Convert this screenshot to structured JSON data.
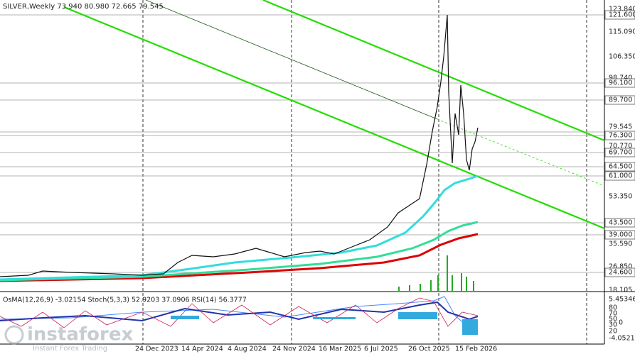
{
  "header": {
    "text": "SILVER,Weekly  73.940 80.980 72.665 79.545"
  },
  "price_axis": {
    "labels": [
      "123.840",
      "121.600",
      "115.090",
      "106.350",
      "98.740",
      "96.100",
      "89.700",
      "79.545",
      "76.300",
      "70.770",
      "69.700",
      "64.500",
      "61.000",
      "53.350",
      "43.500",
      "39.000",
      "35.590",
      "26.850",
      "24.600",
      "18.105"
    ]
  },
  "indicator": {
    "text": "OsMA(12,26,9) -3.02154  Stoch(5,3,3) 52.9203 37.0906  RSI(14) 56.3777",
    "axis_labels": [
      "5.45346",
      "80",
      "70",
      "50",
      "30",
      "0",
      "20",
      "-4.0521"
    ]
  },
  "date_axis": {
    "labels": [
      "24 Dec 2023",
      "14 Apr 2024",
      "4 Aug 2024",
      "24 Nov 2024",
      "16 Mar 2025",
      "6 Jul 2025",
      "26 Oct 2025",
      "15 Feb 2026"
    ]
  },
  "watermark": {
    "brand": "instaforex",
    "tagline": "Instant Forex Trading"
  }
}
